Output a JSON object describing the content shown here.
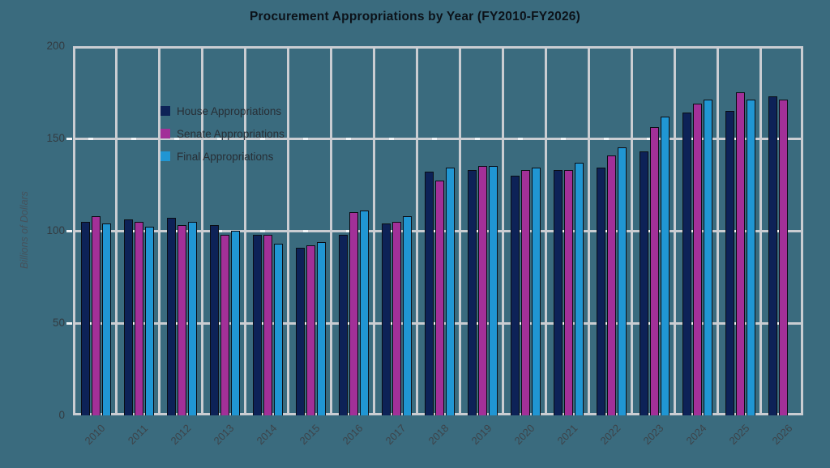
{
  "chart_data": {
    "type": "bar",
    "title": "Procurement Appropriations by Year (FY2010-FY2026)",
    "xlabel": "",
    "ylabel": "Billions of Dollars",
    "ylim": [
      0,
      200
    ],
    "yticks": [
      0,
      50,
      100,
      150,
      200
    ],
    "grid": true,
    "legend_position": "top-left",
    "categories": [
      "2010",
      "2011",
      "2012",
      "2013",
      "2014",
      "2015",
      "2016",
      "2017",
      "2018",
      "2019",
      "2020",
      "2021",
      "2022",
      "2023",
      "2024",
      "2025",
      "2026"
    ],
    "series": [
      {
        "name": "House Appropriations",
        "color": "#0d2257",
        "values": [
          105,
          106,
          107,
          103,
          98,
          91,
          98,
          104,
          132,
          133,
          130,
          133,
          134,
          143,
          164,
          165,
          173
        ]
      },
      {
        "name": "Senate Appropriations",
        "color": "#a23098",
        "values": [
          108,
          105,
          103,
          98,
          98,
          92,
          110,
          105,
          127,
          135,
          133,
          133,
          141,
          156,
          169,
          175,
          171
        ]
      },
      {
        "name": "Final Appropriations",
        "color": "#2096d3",
        "values": [
          104,
          102,
          105,
          100,
          93,
          94,
          111,
          108,
          134,
          135,
          134,
          137,
          145,
          162,
          171,
          171,
          null
        ]
      }
    ],
    "colors": {
      "background": "#3a6b7e",
      "gridline": "#cacdd2",
      "tick_mark": "#f2f4f6",
      "bar_outline": "#0a0d14"
    }
  }
}
